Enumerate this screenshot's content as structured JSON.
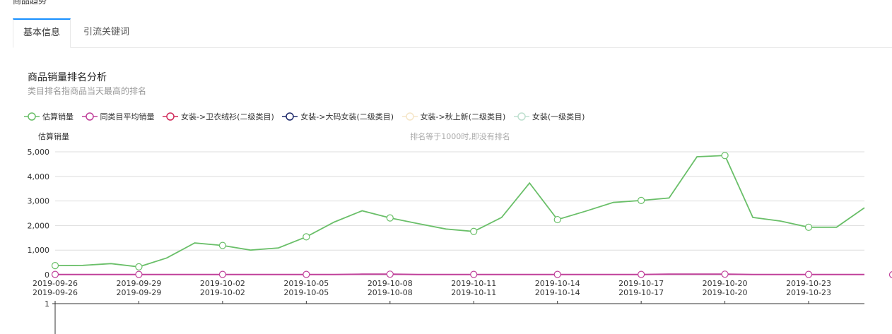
{
  "header": {
    "clipped_title": "商品趋势"
  },
  "tabs": [
    {
      "label": "基本信息",
      "active": true
    },
    {
      "label": "引流关键词",
      "active": false
    }
  ],
  "panel": {
    "title": "商品销量排名分析",
    "subtitle": "类目排名指商品当天最高的排名"
  },
  "legend": [
    {
      "label": "估算销量",
      "color": "#6abf69",
      "fill": "#ffffff"
    },
    {
      "label": "同类目平均销量",
      "color": "#c0409a",
      "fill": "#ffffff"
    },
    {
      "label": "女装->卫衣绒衫(二级类目)",
      "color": "#d02a5a",
      "fill": "#ffffff"
    },
    {
      "label": "女装->大码女装(二级类目)",
      "color": "#1f2a6b",
      "fill": "#ffffff"
    },
    {
      "label": "女装->秋上新(二级类目)",
      "color": "#f5e6c8",
      "fill": "#ffffff"
    },
    {
      "label": "女装(一级类目)",
      "color": "#bfe0d0",
      "fill": "#ffffff"
    }
  ],
  "chart_data": {
    "type": "line",
    "ylabel": "估算销量",
    "annotation": "排名等于1000时,即没有排名",
    "ylim": [
      0,
      5000
    ],
    "yticks": [
      "5,000",
      "4,000",
      "3,000",
      "2,000",
      "1,000",
      "0"
    ],
    "ytick_values": [
      5000,
      4000,
      3000,
      2000,
      1000,
      0
    ],
    "x_ticks": [
      "2019-09-26",
      "2019-09-29",
      "2019-10-02",
      "2019-10-05",
      "2019-10-08",
      "2019-10-11",
      "2019-10-14",
      "2019-10-17",
      "2019-10-20",
      "2019-10-23"
    ],
    "x": [
      "2019-09-26",
      "2019-09-27",
      "2019-09-28",
      "2019-09-29",
      "2019-09-30",
      "2019-10-01",
      "2019-10-02",
      "2019-10-03",
      "2019-10-04",
      "2019-10-05",
      "2019-10-06",
      "2019-10-07",
      "2019-10-08",
      "2019-10-09",
      "2019-10-10",
      "2019-10-11",
      "2019-10-12",
      "2019-10-13",
      "2019-10-14",
      "2019-10-15",
      "2019-10-16",
      "2019-10-17",
      "2019-10-18",
      "2019-10-19",
      "2019-10-20",
      "2019-10-21",
      "2019-10-22",
      "2019-10-23",
      "2019-10-24",
      "2019-10-25"
    ],
    "series": [
      {
        "name": "估算销量",
        "color": "#6abf69",
        "values": [
          370,
          380,
          450,
          320,
          680,
          1290,
          1190,
          1000,
          1090,
          1540,
          2140,
          2600,
          2310,
          2080,
          1860,
          1760,
          2330,
          3730,
          2240,
          2580,
          2940,
          3020,
          3120,
          4800,
          4850,
          2330,
          2180,
          1930,
          1930,
          2720
        ]
      },
      {
        "name": "同类目平均销量",
        "color": "#c0409a",
        "values": [
          10,
          10,
          10,
          10,
          10,
          10,
          10,
          10,
          10,
          10,
          10,
          20,
          20,
          10,
          10,
          10,
          10,
          10,
          10,
          10,
          10,
          10,
          20,
          20,
          20,
          10,
          10,
          10,
          10,
          10
        ]
      }
    ],
    "secondary_axis": {
      "top_tick": "1"
    }
  }
}
